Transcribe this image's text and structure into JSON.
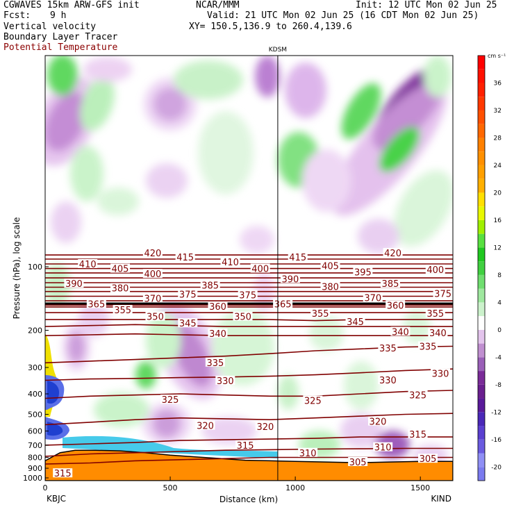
{
  "header": {
    "model": "CGWAVES 15km ARW-GFS init",
    "fcst_label": "Fcst:",
    "fcst_value": "9 h",
    "center": "NCAR/MMM",
    "init": "Init: 12 UTC Mon 02 Jun 25",
    "valid": "Valid: 21 UTC Mon 02 Jun 25 (16 CDT Mon 02 Jun 25)",
    "xy": "XY= 150.5,136.9 to 260.4,139.6",
    "fields": [
      "Vertical velocity",
      "Boundary Layer Tracer",
      "Potential Temperature"
    ],
    "field_colors": [
      "#000000",
      "#000000",
      "#8b0000"
    ]
  },
  "chart_data": {
    "type": "heatmap",
    "title": "",
    "xlabel": "Distance (km)",
    "ylabel": "Pressure (hPa), log scale",
    "xlim": [
      0,
      1630
    ],
    "ylim": [
      1050,
      10
    ],
    "y_scale": "log",
    "x_ticks": [
      0,
      500,
      1000,
      1500
    ],
    "y_ticks": [
      100,
      200,
      300,
      400,
      500,
      600,
      700,
      800,
      900,
      1000
    ],
    "station_labels": [
      {
        "name": "KBJC",
        "x": 0,
        "pos": "bottom"
      },
      {
        "name": "KDSM",
        "x": 930,
        "pos": "top"
      },
      {
        "name": "KIND",
        "x": 1630,
        "pos": "bottom"
      }
    ],
    "colorbar": {
      "unit": "cm s⁻¹",
      "levels": [
        -22,
        -20,
        -18,
        -16,
        -14,
        -12,
        -10,
        -8,
        -6,
        -4,
        -2,
        0,
        2,
        4,
        6,
        8,
        10,
        12,
        14,
        16,
        18,
        20,
        22,
        24,
        26,
        28,
        30,
        32,
        34,
        36,
        38,
        40
      ],
      "colors": [
        "#7b7bef",
        "#8f8ff5",
        "#6a5be0",
        "#5a3fd0",
        "#4a28b8",
        "#5a1a9a",
        "#6a1f8f",
        "#7a2b98",
        "#9a5fb8",
        "#c08fd0",
        "#e3c4ec",
        "#ffffff",
        "#ccf2cc",
        "#9fe89f",
        "#6fde6f",
        "#40d040",
        "#20c820",
        "#58e040",
        "#a0f000",
        "#e8f800",
        "#ffe000",
        "#ffb000",
        "#ffa000",
        "#ff9000",
        "#ff8000",
        "#ff6800",
        "#ff5000",
        "#ff3800",
        "#ff2000",
        "#ff1000",
        "#ff0000"
      ],
      "tick_labels": [
        "-20",
        "-16",
        "-12",
        "-8",
        "-4",
        "0",
        "4",
        "8",
        "12",
        "16",
        "20",
        "24",
        "28",
        "32",
        "36"
      ],
      "tick_values": [
        -20,
        -16,
        -12,
        -8,
        -4,
        0,
        4,
        8,
        12,
        16,
        20,
        24,
        28,
        32,
        36
      ]
    },
    "theta_contours": {
      "color": "#800000",
      "label_unit": "K",
      "lines": [
        {
          "theta": 420,
          "p": [
            88,
            88,
            88,
            88,
            88,
            88,
            88,
            88,
            88,
            88
          ]
        },
        {
          "theta": 415,
          "p": [
            92,
            92,
            92,
            92,
            92,
            92,
            92,
            92,
            92,
            92
          ]
        },
        {
          "theta": 410,
          "p": [
            97,
            97,
            97,
            97,
            97,
            97,
            97,
            97,
            97,
            97
          ]
        },
        {
          "theta": 405,
          "p": [
            102,
            102,
            102,
            102,
            102,
            102,
            102,
            102,
            102,
            102
          ]
        },
        {
          "theta": 400,
          "p": [
            107,
            107,
            107,
            107,
            107,
            107,
            107,
            107,
            107,
            107
          ]
        },
        {
          "theta": 395,
          "p": [
            113,
            113,
            113,
            113,
            113,
            113,
            113,
            113,
            113,
            113
          ]
        },
        {
          "theta": 390,
          "p": [
            119,
            119,
            119,
            119,
            119,
            119,
            119,
            119,
            119,
            119
          ]
        },
        {
          "theta": 385,
          "p": [
            125,
            125,
            125,
            125,
            125,
            125,
            125,
            125,
            125,
            125
          ]
        },
        {
          "theta": 380,
          "p": [
            131,
            131,
            131,
            131,
            131,
            131,
            131,
            131,
            131,
            131
          ]
        },
        {
          "theta": 375,
          "p": [
            138,
            138,
            138,
            138,
            138,
            138,
            138,
            138,
            138,
            138
          ]
        },
        {
          "theta": 370,
          "p": [
            145,
            145,
            145,
            145,
            145,
            145,
            145,
            145,
            145,
            145
          ]
        },
        {
          "theta": 365,
          "p": [
            152,
            152,
            152,
            152,
            152,
            152,
            152,
            152,
            152,
            152
          ]
        },
        {
          "theta": 360,
          "p": [
            155,
            155,
            155,
            155,
            155,
            155,
            155,
            155,
            155,
            155
          ]
        },
        {
          "theta": 355,
          "p": [
            165,
            165,
            165,
            165,
            165,
            165,
            165,
            165,
            165,
            165
          ]
        },
        {
          "theta": 350,
          "p": [
            178,
            178,
            178,
            178,
            178,
            178,
            180,
            178,
            178,
            178
          ]
        },
        {
          "theta": 345,
          "p": [
            192,
            190,
            188,
            190,
            192,
            192,
            192,
            192,
            192,
            192
          ]
        },
        {
          "theta": 340,
          "p": [
            212,
            210,
            208,
            210,
            212,
            212,
            212,
            212,
            212,
            212
          ]
        },
        {
          "theta": 335,
          "p": [
            285,
            280,
            275,
            270,
            265,
            258,
            250,
            245,
            240,
            238
          ]
        },
        {
          "theta": 330,
          "p": [
            345,
            340,
            338,
            335,
            333,
            330,
            325,
            318,
            310,
            305
          ]
        },
        {
          "theta": 325,
          "p": [
            420,
            410,
            405,
            400,
            405,
            410,
            410,
            400,
            390,
            385
          ]
        },
        {
          "theta": 320,
          "p": [
            560,
            545,
            530,
            520,
            525,
            530,
            520,
            510,
            500,
            495
          ]
        },
        {
          "theta": 315,
          "p": [
            700,
            690,
            680,
            665,
            660,
            655,
            650,
            640,
            640,
            640
          ]
        },
        {
          "theta": 310,
          "p": [
            790,
            770,
            760,
            750,
            740,
            735,
            730,
            728,
            725,
            725
          ]
        },
        {
          "theta": 305,
          "p": [
            860,
            850,
            830,
            820,
            810,
            800,
            800,
            800,
            800,
            800
          ]
        }
      ],
      "x": [
        0,
        180,
        360,
        540,
        720,
        900,
        1080,
        1260,
        1440,
        1630
      ],
      "labels": [
        {
          "theta": "420",
          "x": 430,
          "p": 86
        },
        {
          "theta": "415",
          "x": 560,
          "p": 90
        },
        {
          "theta": "410",
          "x": 170,
          "p": 97
        },
        {
          "theta": "410",
          "x": 740,
          "p": 95
        },
        {
          "theta": "415",
          "x": 1010,
          "p": 90
        },
        {
          "theta": "420",
          "x": 1390,
          "p": 86
        },
        {
          "theta": "405",
          "x": 300,
          "p": 102
        },
        {
          "theta": "400",
          "x": 430,
          "p": 108
        },
        {
          "theta": "400",
          "x": 860,
          "p": 102
        },
        {
          "theta": "405",
          "x": 1140,
          "p": 99
        },
        {
          "theta": "395",
          "x": 1270,
          "p": 106
        },
        {
          "theta": "400",
          "x": 1560,
          "p": 103
        },
        {
          "theta": "390",
          "x": 115,
          "p": 120
        },
        {
          "theta": "380",
          "x": 300,
          "p": 126
        },
        {
          "theta": "385",
          "x": 660,
          "p": 122
        },
        {
          "theta": "390",
          "x": 980,
          "p": 114
        },
        {
          "theta": "380",
          "x": 1140,
          "p": 124
        },
        {
          "theta": "385",
          "x": 1380,
          "p": 120
        },
        {
          "theta": "370",
          "x": 430,
          "p": 141
        },
        {
          "theta": "375",
          "x": 570,
          "p": 135
        },
        {
          "theta": "375",
          "x": 810,
          "p": 136
        },
        {
          "theta": "370",
          "x": 1310,
          "p": 140
        },
        {
          "theta": "375",
          "x": 1590,
          "p": 134
        },
        {
          "theta": "365",
          "x": 205,
          "p": 150
        },
        {
          "theta": "360",
          "x": 690,
          "p": 154
        },
        {
          "theta": "365",
          "x": 950,
          "p": 150
        },
        {
          "theta": "360",
          "x": 1400,
          "p": 152
        },
        {
          "theta": "355",
          "x": 310,
          "p": 160
        },
        {
          "theta": "350",
          "x": 440,
          "p": 172
        },
        {
          "theta": "350",
          "x": 790,
          "p": 172
        },
        {
          "theta": "355",
          "x": 1100,
          "p": 166
        },
        {
          "theta": "355",
          "x": 1560,
          "p": 166
        },
        {
          "theta": "345",
          "x": 570,
          "p": 185
        },
        {
          "theta": "345",
          "x": 1240,
          "p": 182
        },
        {
          "theta": "340",
          "x": 690,
          "p": 207
        },
        {
          "theta": "340",
          "x": 1420,
          "p": 203
        },
        {
          "theta": "340",
          "x": 1570,
          "p": 205
        },
        {
          "theta": "335",
          "x": 680,
          "p": 284
        },
        {
          "theta": "335",
          "x": 1370,
          "p": 243
        },
        {
          "theta": "335",
          "x": 1530,
          "p": 238
        },
        {
          "theta": "330",
          "x": 720,
          "p": 346
        },
        {
          "theta": "330",
          "x": 1370,
          "p": 344
        },
        {
          "theta": "330",
          "x": 1580,
          "p": 320
        },
        {
          "theta": "325",
          "x": 500,
          "p": 425
        },
        {
          "theta": "325",
          "x": 1070,
          "p": 430
        },
        {
          "theta": "325",
          "x": 1490,
          "p": 405
        },
        {
          "theta": "320",
          "x": 640,
          "p": 565
        },
        {
          "theta": "320",
          "x": 880,
          "p": 570
        },
        {
          "theta": "320",
          "x": 1330,
          "p": 540
        },
        {
          "theta": "315",
          "x": 800,
          "p": 700
        },
        {
          "theta": "315",
          "x": 1490,
          "p": 620
        },
        {
          "theta": "310",
          "x": 1050,
          "p": 760
        },
        {
          "theta": "310",
          "x": 1350,
          "p": 715
        },
        {
          "theta": "305",
          "x": 1250,
          "p": 840
        },
        {
          "theta": "305",
          "x": 1530,
          "p": 810
        },
        {
          "theta": "315",
          "x": 70,
          "p": 950
        }
      ]
    },
    "terrain_surface": {
      "x": [
        0,
        60,
        120,
        200,
        300,
        400,
        500,
        600,
        700,
        800,
        900,
        1000,
        1100,
        1200,
        1300,
        1400,
        1500,
        1630
      ],
      "p": [
        830,
        760,
        740,
        740,
        745,
        760,
        780,
        795,
        810,
        825,
        830,
        835,
        840,
        845,
        845,
        840,
        835,
        835
      ]
    }
  }
}
